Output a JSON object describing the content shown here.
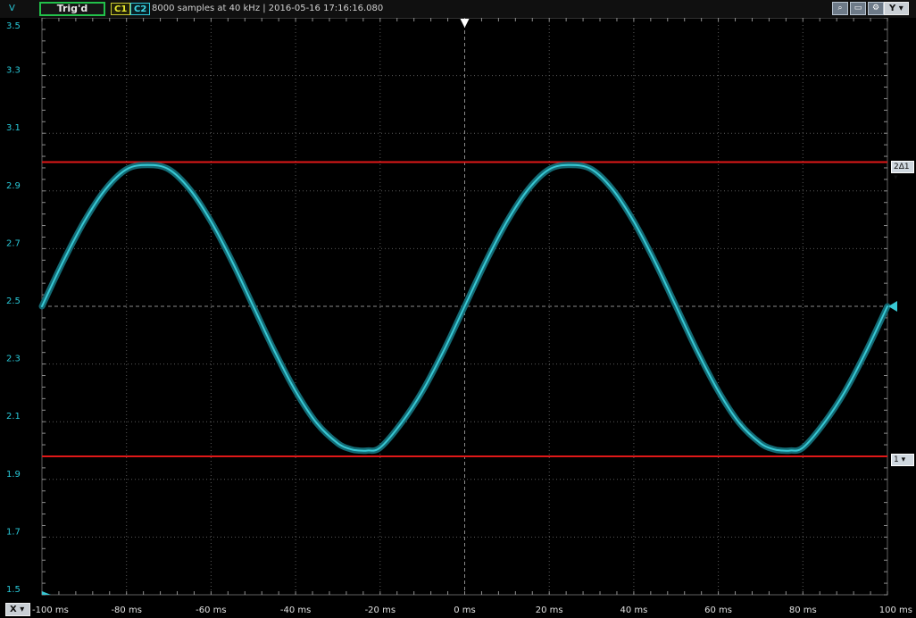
{
  "header": {
    "unit": "V",
    "trigger_status": "Trig'd",
    "channel1": "C1",
    "channel2": "C2",
    "info": "8000 samples at 40 kHz | 2016-05-16 17:16:16.080",
    "y_button": "Y",
    "icons": [
      "zoom-icon",
      "fit-icon",
      "settings-icon"
    ]
  },
  "cursors": [
    {
      "label": "2Δ1",
      "value": 3.0
    },
    {
      "label": "1",
      "value": 1.98
    }
  ],
  "x_button": "X",
  "colors": {
    "trace": "#38c8d4",
    "trace_glow": "#136a74",
    "cursor": "#e01818",
    "axis_text": "#28c8d8",
    "grid": "#5a5a5a",
    "background": "#000000"
  },
  "chart_data": {
    "type": "line",
    "title": "",
    "xlabel": "",
    "ylabel": "V",
    "xlim": [
      -100,
      100
    ],
    "ylim": [
      1.5,
      3.5
    ],
    "x_ticks": [
      -100,
      -80,
      -60,
      -40,
      -20,
      0,
      20,
      40,
      60,
      80,
      100
    ],
    "x_tick_labels": [
      "-100 ms",
      "-80 ms",
      "-60 ms",
      "-40 ms",
      "-20 ms",
      "0 ms",
      "20 ms",
      "40 ms",
      "60 ms",
      "80 ms",
      "100 ms"
    ],
    "y_ticks": [
      1.5,
      1.7,
      1.9,
      2.1,
      2.3,
      2.5,
      2.7,
      2.9,
      3.1,
      3.3,
      3.5
    ],
    "y_tick_labels": [
      "1.5",
      "1.7",
      "1.9",
      "2.1",
      "2.3",
      "2.5",
      "2.7",
      "2.9",
      "3.1",
      "3.3",
      "3.5"
    ],
    "grid": true,
    "series": [
      {
        "x": [
          -100,
          -95,
          -90,
          -85,
          -80,
          -75,
          -70,
          -65,
          -60,
          -55,
          -50,
          -45,
          -40,
          -35,
          -30,
          -27,
          -25,
          -23,
          -20,
          -15,
          -10,
          -5,
          0,
          5,
          10,
          15,
          20,
          25,
          30,
          35,
          40,
          45,
          50,
          55,
          60,
          65,
          70,
          73,
          75,
          77,
          80,
          85,
          90,
          95,
          100
        ],
        "y": [
          2.5,
          2.655,
          2.794,
          2.905,
          2.975,
          2.99,
          2.975,
          2.905,
          2.794,
          2.655,
          2.5,
          2.345,
          2.206,
          2.095,
          2.025,
          2.005,
          2.0,
          2.0,
          2.01,
          2.095,
          2.206,
          2.345,
          2.5,
          2.655,
          2.794,
          2.905,
          2.975,
          2.99,
          2.975,
          2.905,
          2.794,
          2.655,
          2.5,
          2.345,
          2.206,
          2.095,
          2.025,
          2.005,
          2.0,
          2.0,
          2.01,
          2.095,
          2.206,
          2.345,
          2.5
        ]
      }
    ]
  }
}
